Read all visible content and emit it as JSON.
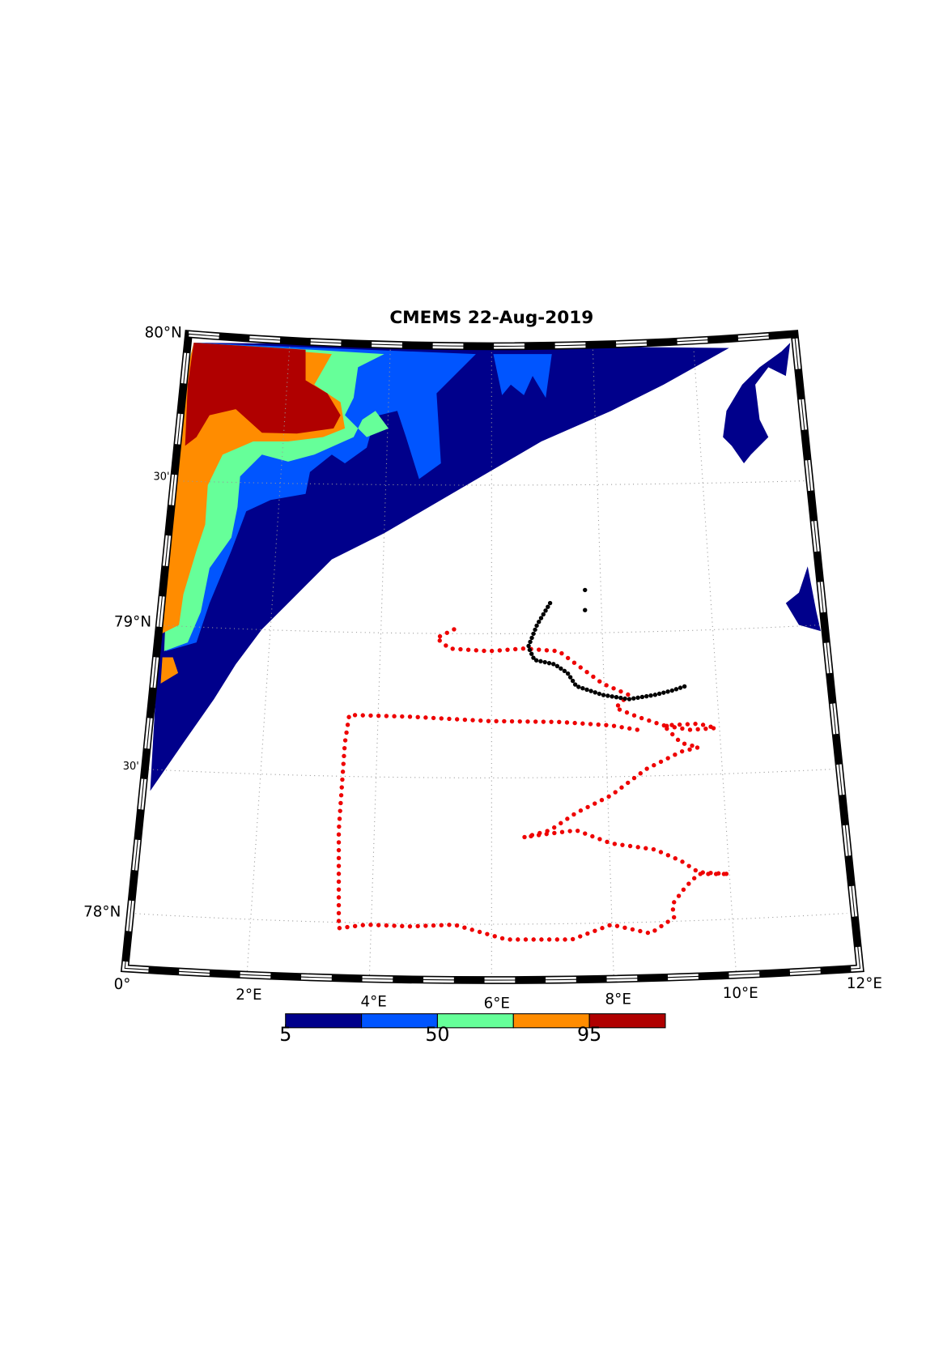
{
  "title": "CMEMS 22-Aug-2019",
  "lat_labels": [
    "80°N",
    "30'",
    "79°N",
    "30'",
    "78°N"
  ],
  "lon_labels": [
    "0°",
    "2°E",
    "4°E",
    "6°E",
    "8°E",
    "10°E",
    "12°E"
  ],
  "colorbar": {
    "lim": [
      5,
      117.5
    ],
    "ticks": [
      5,
      50,
      95
    ],
    "colors": [
      "#00008b",
      "#0055ff",
      "#66ff99",
      "#ff8c00",
      "#b00000"
    ]
  }
}
